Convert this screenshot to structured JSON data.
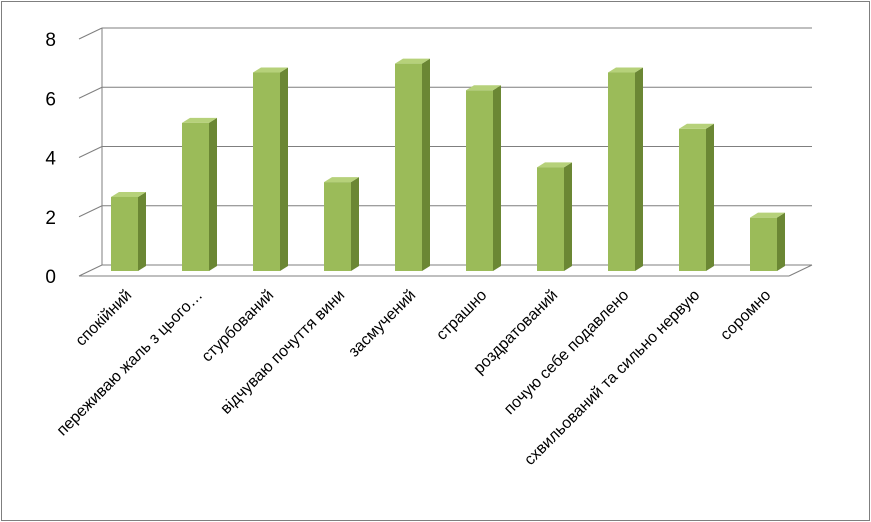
{
  "chart_data": {
    "type": "bar",
    "style": "3d-column",
    "categories": [
      "спокійний",
      "переживаю жаль з цього…",
      "стурбований",
      "відчуваю почуття вини",
      "засмучений",
      "страшно",
      "роздратований",
      "почую себе подавлено",
      "схвильований та сильно нервую",
      "соромно"
    ],
    "values": [
      2.5,
      5.0,
      6.7,
      3.0,
      7.0,
      6.1,
      3.5,
      6.7,
      4.8,
      1.8
    ],
    "ylim": [
      0,
      8
    ],
    "yticks": [
      "0",
      "2",
      "4",
      "6",
      "8"
    ],
    "grid": true,
    "legend": "none",
    "colors": {
      "bar_front": "#9bbb59",
      "bar_side": "#6b8734",
      "bar_top": "#b6d17a",
      "grid": "#7f7f7f"
    }
  }
}
